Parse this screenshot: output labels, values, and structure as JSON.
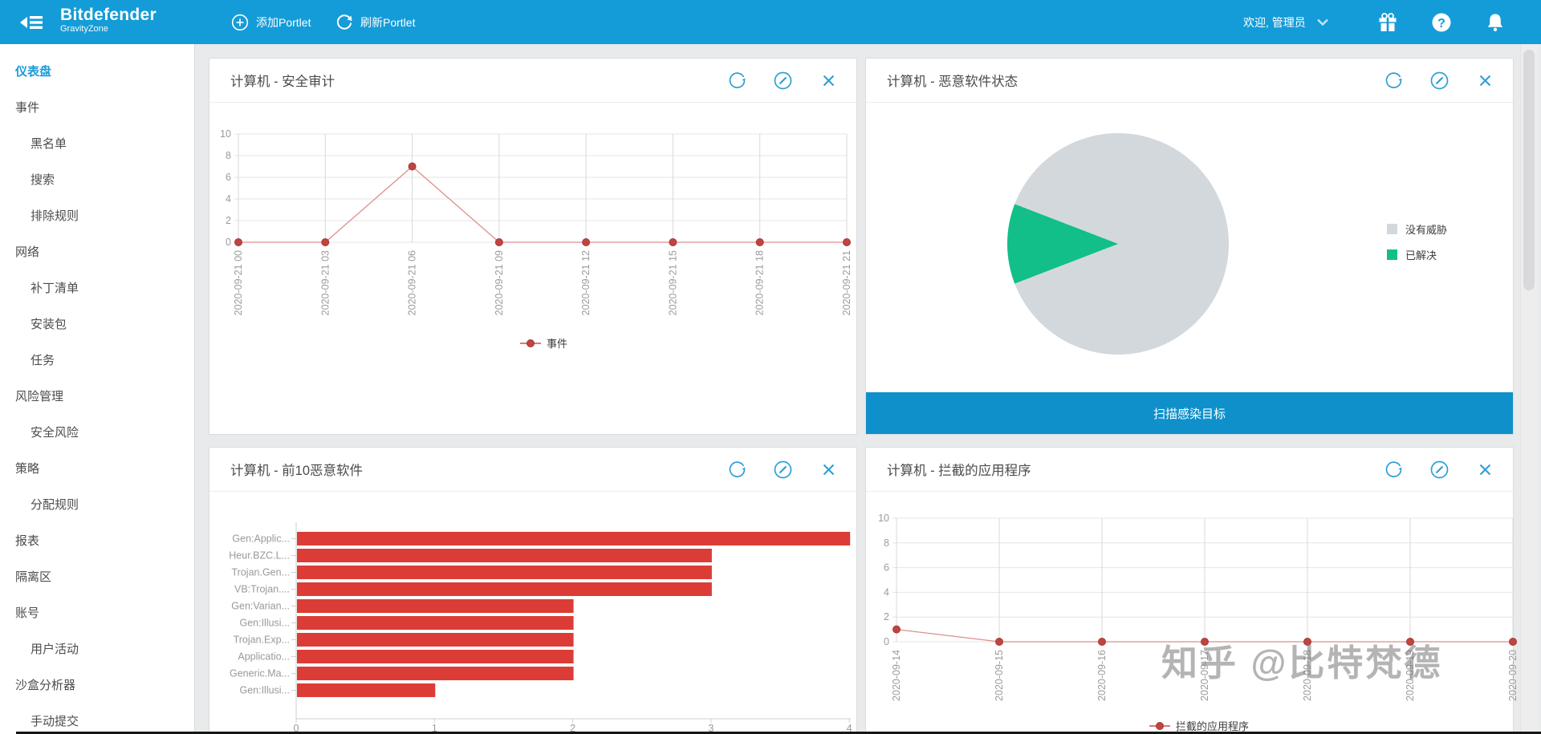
{
  "colors": {
    "topbar_blue": "#149cd8",
    "icon_blue": "#2d9fd4",
    "scan_button_blue": "#0f90ca",
    "bar_red": "#dc3c36",
    "marker_red": "#c04440",
    "pie_gray": "#d3d8dd",
    "pie_green": "#12bf88",
    "active_nav_blue": "#1a9cd8"
  },
  "topbar": {
    "brand_line1": "Bitdefender",
    "brand_line2": "GravityZone",
    "add_portlet": "添加Portlet",
    "refresh_portlet": "刷新Portlet",
    "welcome": "欢迎, 管理员"
  },
  "sidebar": {
    "items": [
      {
        "label": "仪表盘",
        "level": 1,
        "active": true
      },
      {
        "label": "事件",
        "level": 1
      },
      {
        "label": "黑名单",
        "level": 2
      },
      {
        "label": "搜索",
        "level": 2
      },
      {
        "label": "排除规则",
        "level": 2
      },
      {
        "label": "网络",
        "level": 1
      },
      {
        "label": "补丁清单",
        "level": 2
      },
      {
        "label": "安装包",
        "level": 2
      },
      {
        "label": "任务",
        "level": 2
      },
      {
        "label": "风险管理",
        "level": 1
      },
      {
        "label": "安全风险",
        "level": 2
      },
      {
        "label": "策略",
        "level": 1
      },
      {
        "label": "分配规则",
        "level": 2
      },
      {
        "label": "报表",
        "level": 1
      },
      {
        "label": "隔离区",
        "level": 1
      },
      {
        "label": "账号",
        "level": 1
      },
      {
        "label": "用户活动",
        "level": 2
      },
      {
        "label": "沙盒分析器",
        "level": 1
      },
      {
        "label": "手动提交",
        "level": 2
      }
    ]
  },
  "portlets": [
    {
      "title": "计算机 - 安全审计"
    },
    {
      "title": "计算机 - 恶意软件状态",
      "button": "扫描感染目标"
    },
    {
      "title": "计算机 - 前10恶意软件"
    },
    {
      "title": "计算机 - 拦截的应用程序"
    }
  ],
  "watermark": "知乎 @比特梵德",
  "chart_data": [
    {
      "id": "security-audit",
      "type": "line",
      "title": "计算机 - 安全审计",
      "x": [
        "2020-09-21 00",
        "2020-09-21 03",
        "2020-09-21 06",
        "2020-09-21 09",
        "2020-09-21 12",
        "2020-09-21 15",
        "2020-09-21 18",
        "2020-09-21 21"
      ],
      "series": [
        {
          "name": "事件",
          "values": [
            0,
            0,
            7,
            0,
            0,
            0,
            0,
            0
          ],
          "color": "#c04440"
        }
      ],
      "ylim": [
        0,
        10
      ],
      "yticks": [
        0,
        2,
        4,
        6,
        8,
        10
      ],
      "grid": true,
      "legend_position": "bottom"
    },
    {
      "id": "malware-status",
      "type": "pie",
      "title": "计算机 - 恶意软件状态",
      "slices": [
        {
          "label": "没有威胁",
          "percent": 88.3,
          "color": "#d3d8dd"
        },
        {
          "label": "已解决",
          "percent": 11.7,
          "color": "#12bf88"
        }
      ],
      "legend_position": "right"
    },
    {
      "id": "top10-malware",
      "type": "bar",
      "title": "计算机 - 前10恶意软件",
      "orientation": "horizontal",
      "categories": [
        "Gen:Applic...",
        "Heur.BZC.L...",
        "Trojan.Gen...",
        "VB:Trojan....",
        "Gen:Varian...",
        "Gen:Illusi...",
        "Trojan.Exp...",
        "Applicatio...",
        "Generic.Ma...",
        "Gen:Illusi..."
      ],
      "values": [
        4,
        3,
        3,
        3,
        2,
        2,
        2,
        2,
        2,
        1
      ],
      "color": "#dc3c36",
      "xlim": [
        0,
        4
      ],
      "xticks": [
        0,
        1,
        2,
        3,
        4
      ]
    },
    {
      "id": "blocked-applications",
      "type": "line",
      "title": "计算机 - 拦截的应用程序",
      "x": [
        "2020-09-14",
        "2020-09-15",
        "2020-09-16",
        "2020-09-17",
        "2020-09-18",
        "2020-09-19",
        "2020-09-20"
      ],
      "series": [
        {
          "name": "拦截的应用程序",
          "values": [
            1,
            0,
            0,
            0,
            0,
            0,
            0
          ],
          "color": "#c04440"
        }
      ],
      "ylim": [
        0,
        10
      ],
      "yticks": [
        0,
        2,
        4,
        6,
        8,
        10
      ],
      "grid": true,
      "legend_position": "bottom"
    }
  ]
}
